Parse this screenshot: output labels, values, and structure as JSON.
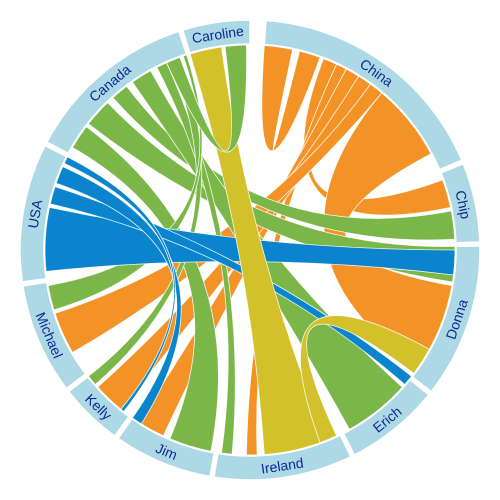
{
  "chart_data": {
    "type": "chord",
    "colors": {
      "ring": "#add8e6",
      "label": "#0b2a8f",
      "orange": "#f39327",
      "green": "#7ab648",
      "blue": "#0a85cd",
      "yellow": "#d3c12b"
    },
    "nodes": [
      {
        "name": "China",
        "start": 4,
        "end": 67
      },
      {
        "name": "Chip",
        "start": 68,
        "end": 88
      },
      {
        "name": "Donna",
        "start": 89,
        "end": 128
      },
      {
        "name": "Erich",
        "start": 129,
        "end": 153
      },
      {
        "name": "Ireland",
        "start": 154,
        "end": 189
      },
      {
        "name": "Jim",
        "start": 190,
        "end": 215
      },
      {
        "name": "Kelly",
        "start": 216,
        "end": 232
      },
      {
        "name": "Michael",
        "start": 233,
        "end": 261
      },
      {
        "name": "USA",
        "start": 262,
        "end": 297
      },
      {
        "name": "Canada",
        "start": 298,
        "end": 342
      },
      {
        "name": "Caroline",
        "start": 343,
        "end": 360
      }
    ],
    "links": [
      {
        "from": "China",
        "to": "China",
        "color": "orange",
        "s": [
          4,
          12
        ],
        "t": [
          14,
          20
        ]
      },
      {
        "from": "China",
        "to": "Chip",
        "color": "orange",
        "s": [
          21,
          25
        ],
        "t": [
          70,
          78
        ]
      },
      {
        "from": "China",
        "to": "Donna",
        "color": "orange",
        "s": [
          40,
          62
        ],
        "t": [
          100,
          125
        ]
      },
      {
        "from": "China",
        "to": "Ireland",
        "color": "orange",
        "s": [
          25,
          28
        ],
        "t": [
          178,
          181
        ]
      },
      {
        "from": "China",
        "to": "Jim",
        "color": "orange",
        "s": [
          28,
          32
        ],
        "t": [
          205,
          213
        ]
      },
      {
        "from": "China",
        "to": "Kelly",
        "color": "orange",
        "s": [
          32,
          36
        ],
        "t": [
          219,
          228
        ]
      },
      {
        "from": "China",
        "to": "Michael",
        "color": "orange",
        "s": [
          36,
          40
        ],
        "t": [
          240,
          252
        ]
      },
      {
        "from": "Chip",
        "to": "Canada",
        "color": "green",
        "s": [
          79,
          87
        ],
        "t": [
          318,
          323
        ]
      },
      {
        "from": "Donna",
        "to": "Canada",
        "color": "green",
        "s": [
          89,
          99
        ],
        "t": [
          308,
          316
        ]
      },
      {
        "from": "Erich",
        "to": "Canada",
        "color": "green",
        "s": [
          132,
          151
        ],
        "t": [
          325,
          331
        ]
      },
      {
        "from": "Ireland",
        "to": "Canada",
        "color": "green",
        "s": [
          185,
          188
        ],
        "t": [
          333,
          336
        ]
      },
      {
        "from": "Jim",
        "to": "Canada",
        "color": "green",
        "s": [
          191,
          203
        ],
        "t": [
          300,
          307
        ]
      },
      {
        "from": "Kelly",
        "to": "Canada",
        "color": "green",
        "s": [
          229,
          232
        ],
        "t": [
          337,
          340
        ]
      },
      {
        "from": "Michael",
        "to": "Canada",
        "color": "green",
        "s": [
          253,
          260
        ],
        "t": [
          341,
          342
        ]
      },
      {
        "from": "USA",
        "to": "Donna",
        "color": "blue",
        "s": [
          264,
          282
        ],
        "t": [
          90,
          97
        ]
      },
      {
        "from": "USA",
        "to": "Erich",
        "color": "blue",
        "s": [
          283,
          288
        ],
        "t": [
          128,
          131
        ]
      },
      {
        "from": "USA",
        "to": "Jim",
        "color": "blue",
        "s": [
          289,
          294
        ],
        "t": [
          212,
          215
        ]
      },
      {
        "from": "USA",
        "to": "Kelly",
        "color": "blue",
        "s": [
          295,
          297
        ],
        "t": [
          218,
          219
        ]
      },
      {
        "from": "Caroline",
        "to": "Ireland",
        "color": "yellow",
        "s": [
          343,
          352
        ],
        "t": [
          158,
          176
        ]
      },
      {
        "from": "Donna",
        "to": "Ireland",
        "color": "yellow",
        "s": [
          119,
          127
        ],
        "t": [
          155,
          160
        ]
      },
      {
        "from": "Caroline",
        "to": "Canada",
        "color": "green",
        "s": [
          353,
          359
        ],
        "t": [
          336,
          340
        ]
      }
    ]
  }
}
